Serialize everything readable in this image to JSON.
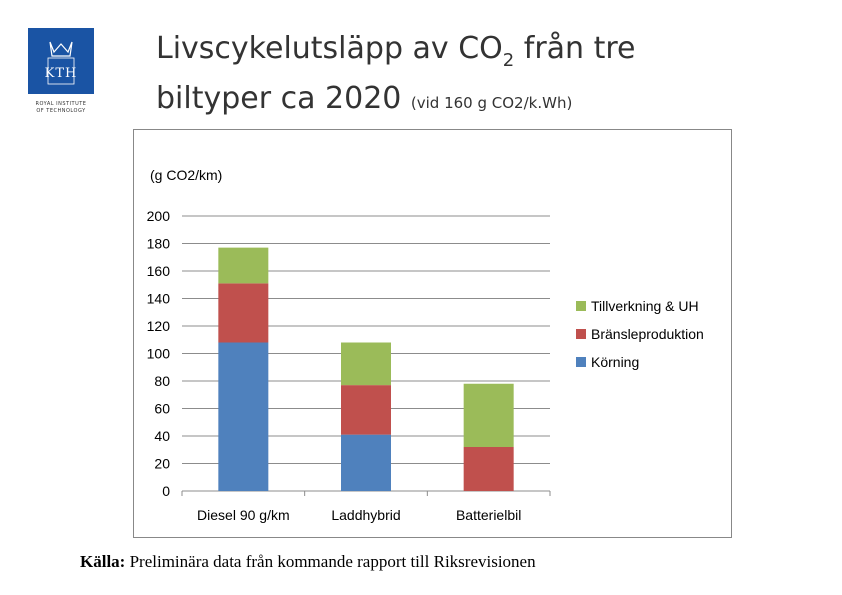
{
  "logo": {
    "text": "KTH",
    "caption_line1": "ROYAL INSTITUTE",
    "caption_line2": "OF TECHNOLOGY",
    "color": "#1a54a4"
  },
  "title": {
    "line1_before_sub": "Livscykelutsläpp av CO",
    "line1_sub": "2",
    "line1_after_sub": " från tre",
    "line2_main": "biltyper ca 2020 ",
    "line2_note": "(vid 160 g CO2/k.Wh)"
  },
  "chart_data": {
    "type": "bar",
    "stacked": true,
    "ylabel": "(g CO2/km)",
    "ylim": [
      0,
      200
    ],
    "yticks": [
      0,
      20,
      40,
      60,
      80,
      100,
      120,
      140,
      160,
      180,
      200
    ],
    "grid": true,
    "legend_position": "right",
    "categories": [
      "Diesel 90 g/km",
      "Laddhybrid",
      "Batterielbil"
    ],
    "series": [
      {
        "name": "Körning",
        "color": "#4f81bd",
        "values": [
          108,
          41,
          0
        ]
      },
      {
        "name": "Bränsleproduktion",
        "color": "#c0504d",
        "values": [
          43,
          36,
          32
        ]
      },
      {
        "name": "Tillverkning & UH",
        "color": "#9bbb59",
        "values": [
          26,
          31,
          46
        ]
      }
    ]
  },
  "source": {
    "label": "Källa:",
    "text": " Preliminära data från kommande rapport till Riksrevisionen"
  }
}
